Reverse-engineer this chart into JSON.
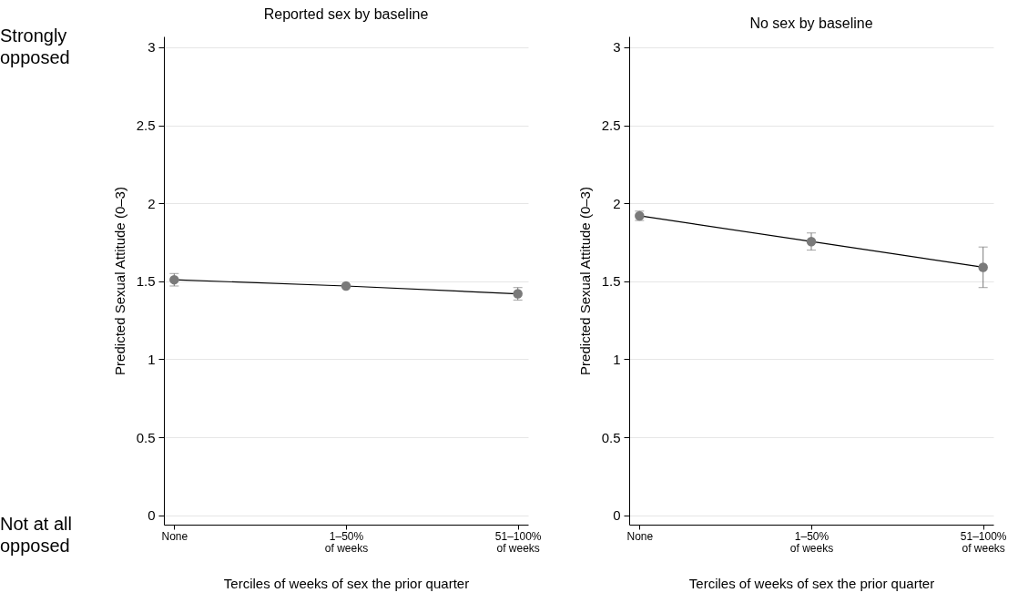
{
  "chart_data": [
    {
      "type": "line",
      "title": "Reported sex by baseline",
      "xlabel": "Terciles of weeks of sex the prior quarter",
      "ylabel": "Predicted Sexual Attitude (0–3)",
      "categories": [
        "None",
        "1–50% of weeks",
        "51–100% of weeks"
      ],
      "series": [
        {
          "color": "#7a7a7a",
          "values": [
            1.51,
            1.47,
            1.42
          ],
          "errors": [
            [
              1.47,
              1.55
            ],
            null,
            [
              1.38,
              1.46
            ]
          ]
        }
      ],
      "ylim": [
        -0.06,
        3.07
      ],
      "yticks": [
        0,
        0.5,
        1,
        1.5,
        2,
        2.5,
        3
      ],
      "grid": "y",
      "marker": "circle",
      "line_style": "solid",
      "annotations": [
        "Strongly opposed",
        "Not at all opposed"
      ]
    },
    {
      "type": "line",
      "title": "No sex by baseline",
      "xlabel": "Terciles of weeks of sex the prior quarter",
      "ylabel": "Predicted Sexual Attitude (0–3)",
      "categories": [
        "None",
        "1–50% of weeks",
        "51–100% of weeks"
      ],
      "series": [
        {
          "color": "#7a7a7a",
          "values": [
            1.92,
            1.755,
            1.59
          ],
          "errors": [
            [
              1.89,
              1.95
            ],
            [
              1.7,
              1.81
            ],
            [
              1.46,
              1.72
            ]
          ]
        }
      ],
      "ylim": [
        -0.06,
        3.07
      ],
      "yticks": [
        0,
        0.5,
        1,
        1.5,
        2,
        2.5,
        3
      ],
      "grid": "y",
      "marker": "circle",
      "line_style": "solid"
    }
  ]
}
